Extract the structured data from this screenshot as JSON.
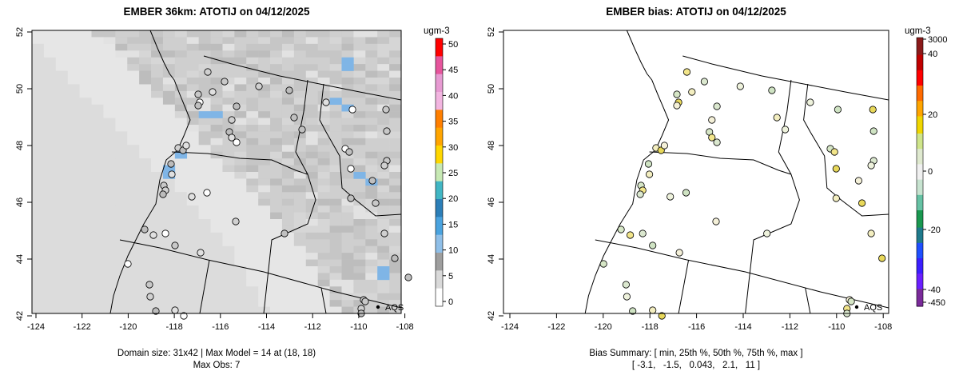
{
  "left_panel": {
    "title": "EMBER 36km: ATOTIJ on 04/12/2025",
    "x_ticks": [
      "-124",
      "-122",
      "-120",
      "-118",
      "-116",
      "-114",
      "-112",
      "-110",
      "-108"
    ],
    "y_ticks": [
      "52",
      "50",
      "48",
      "46",
      "44",
      "42"
    ],
    "colorbar_units": "ugm-3",
    "colorbar_labels": [
      "50",
      "45",
      "40",
      "35",
      "30",
      "25",
      "20",
      "15",
      "10",
      "5",
      "0"
    ],
    "legend_label": "AQS",
    "caption_line1": "Domain size: 31x42 | Max Model = 14 at (18, 18)",
    "caption_line2": "Max Obs: 7"
  },
  "right_panel": {
    "title": "EMBER bias: ATOTIJ on 04/12/2025",
    "x_ticks": [
      "-124",
      "-122",
      "-120",
      "-118",
      "-116",
      "-114",
      "-112",
      "-110",
      "-108"
    ],
    "y_ticks": [
      "52",
      "50",
      "48",
      "46",
      "44",
      "42"
    ],
    "colorbar_units": "ugm-3",
    "colorbar_labels": [
      "3000",
      "40",
      "20",
      "0",
      "-20",
      "-40",
      "-450"
    ],
    "legend_label": "AQS",
    "caption_line1": "Bias Summary: [ min, 25th %, 50th %, 75th %, max ]",
    "caption_line2": "[ -3.1,   -1.5,   0.043,   2.1,   11 ]"
  }
}
